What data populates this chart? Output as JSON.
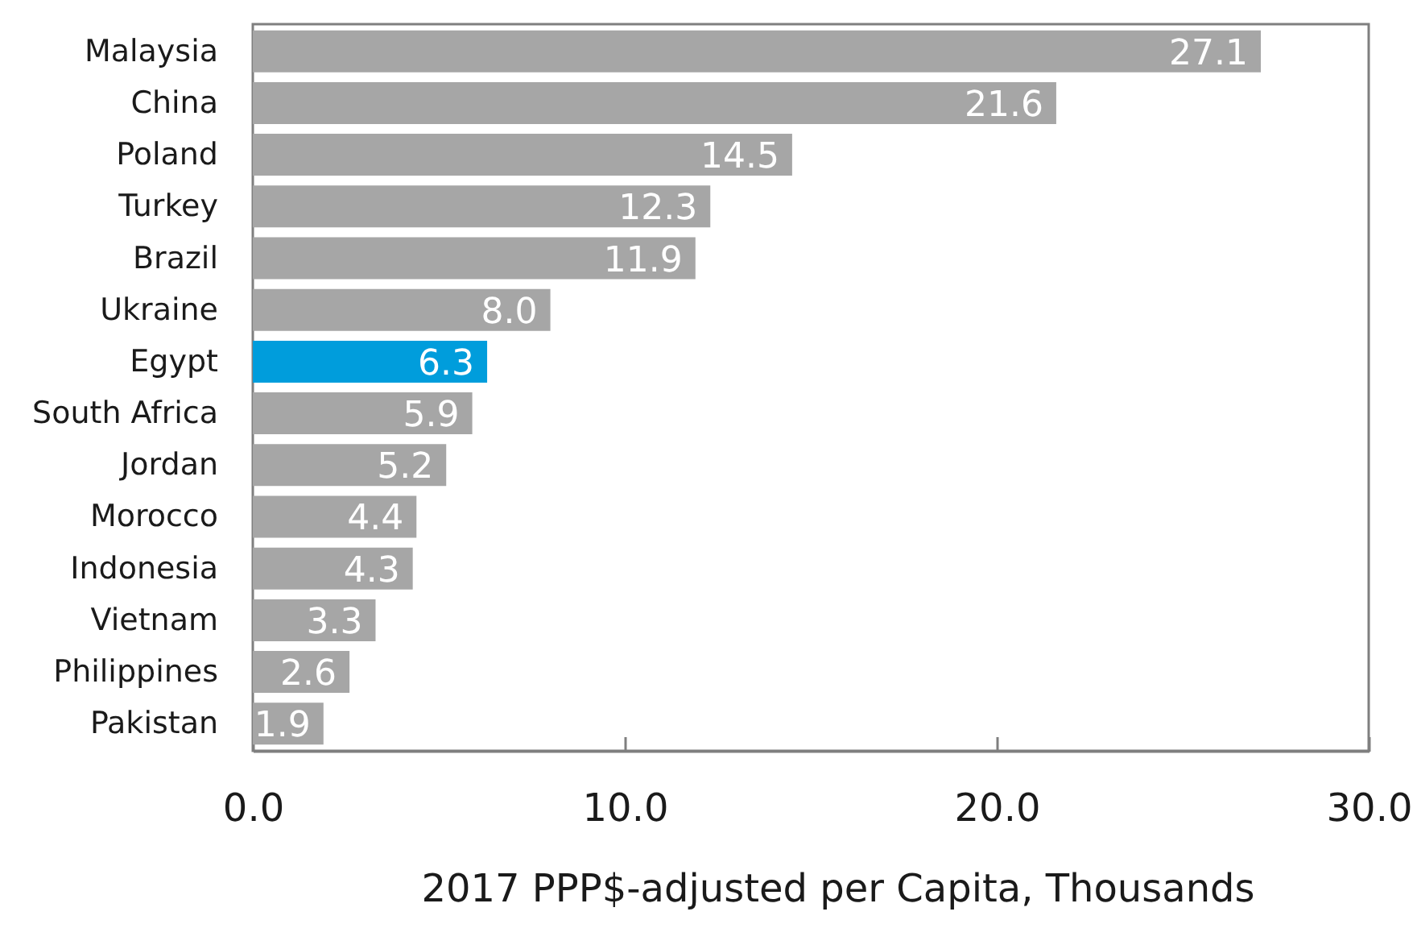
{
  "chart_data": {
    "type": "bar",
    "orientation": "horizontal",
    "categories": [
      "Malaysia",
      "China",
      "Poland",
      "Turkey",
      "Brazil",
      "Ukraine",
      "Egypt",
      "South Africa",
      "Jordan",
      "Morocco",
      "Indonesia",
      "Vietnam",
      "Philippines",
      "Pakistan"
    ],
    "values": [
      27.1,
      21.6,
      14.5,
      12.3,
      11.9,
      8.0,
      6.3,
      5.9,
      5.2,
      4.4,
      4.3,
      3.3,
      2.6,
      1.9
    ],
    "colors": [
      "#a6a6a6",
      "#a6a6a6",
      "#a6a6a6",
      "#a6a6a6",
      "#a6a6a6",
      "#a6a6a6",
      "#009ddc",
      "#a6a6a6",
      "#a6a6a6",
      "#a6a6a6",
      "#a6a6a6",
      "#a6a6a6",
      "#a6a6a6",
      "#a6a6a6"
    ],
    "value_labels": [
      "27.1",
      "21.6",
      "14.5",
      "12.3",
      "11.9",
      "8.0",
      "6.3",
      "5.9",
      "5.2",
      "4.4",
      "4.3",
      "3.3",
      "2.6",
      "1.9"
    ],
    "xlabel": "2017 PPP$-adjusted per Capita, Thousands",
    "xlim": [
      0,
      30
    ],
    "xticks": [
      {
        "value": 0,
        "label": "0.0"
      },
      {
        "value": 10,
        "label": "10.0"
      },
      {
        "value": 20,
        "label": "20.0"
      },
      {
        "value": 30,
        "label": "30.0"
      }
    ]
  }
}
